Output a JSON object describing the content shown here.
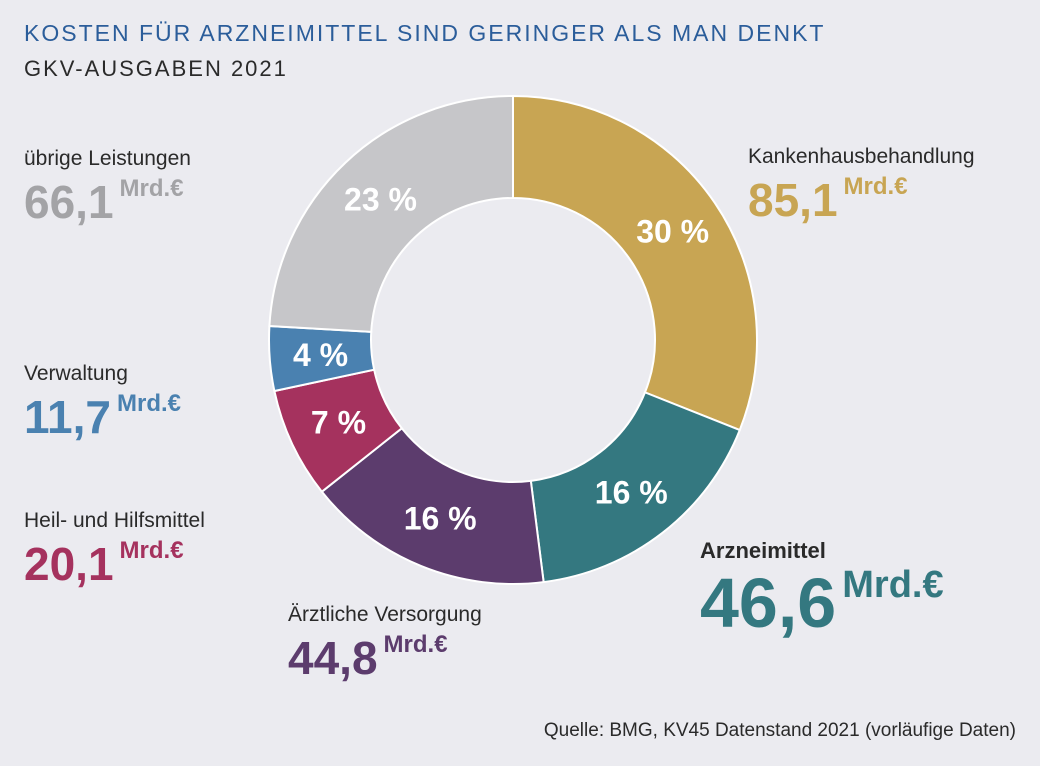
{
  "header": {
    "title": "KOSTEN FÜR ARZNEIMITTEL SIND GERINGER ALS MAN DENKT",
    "subtitle": "GKV-AUSGABEN 2021"
  },
  "source": "Quelle: BMG, KV45 Datenstand 2021 (vorläufige Daten)",
  "chart_data": {
    "type": "pie",
    "variant": "donut",
    "unit": "Mrd.€",
    "slices": [
      {
        "name": "Kankenhausbehandlung",
        "value": 85.1,
        "value_label": "85,1",
        "percent_label": "30 %",
        "color": "#c8a553"
      },
      {
        "name": "Arzneimittel",
        "value": 46.6,
        "value_label": "46,6",
        "percent_label": "16 %",
        "color": "#347880"
      },
      {
        "name": "Ärztliche Versorgung",
        "value": 44.8,
        "value_label": "44,8",
        "percent_label": "16 %",
        "color": "#5c3c6d"
      },
      {
        "name": "Heil- und Hilfsmittel",
        "value": 20.1,
        "value_label": "20,1",
        "percent_label": "7 %",
        "color": "#a5325e"
      },
      {
        "name": "Verwaltung",
        "value": 11.7,
        "value_label": "11,7",
        "percent_label": "4 %",
        "color": "#4a81b0"
      },
      {
        "name": "übrige Leistungen",
        "value": 66.1,
        "value_label": "66,1",
        "percent_label": "23 %",
        "color": "#c6c6c9"
      }
    ]
  },
  "label_colors": {
    "Kankenhausbehandlung": "#c8a553",
    "Arzneimittel": "#347880",
    "Ärztliche Versorgung": "#5c3c6d",
    "Heil- und Hilfsmittel": "#a5325e",
    "Verwaltung": "#4a81b0",
    "übrige Leistungen": "#a3a3a6"
  }
}
